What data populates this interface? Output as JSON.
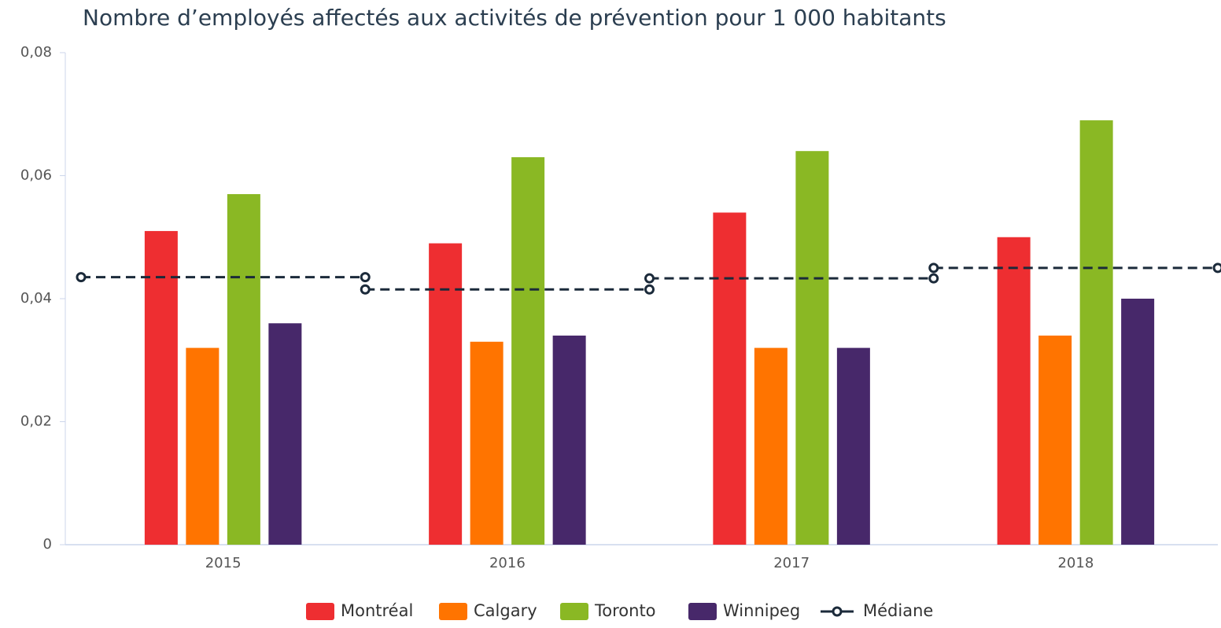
{
  "chart_data": {
    "type": "bar",
    "title": "Nombre d’employés affectés aux activités de prévention pour 1 000 habitants",
    "categories": [
      "2015",
      "2016",
      "2017",
      "2018"
    ],
    "series": [
      {
        "name": "Montréal",
        "color": "#ee2e31",
        "values": [
          0.051,
          0.049,
          0.054,
          0.05
        ]
      },
      {
        "name": "Calgary",
        "color": "#ff7400",
        "values": [
          0.032,
          0.033,
          0.032,
          0.034
        ]
      },
      {
        "name": "Toronto",
        "color": "#8ab824",
        "values": [
          0.057,
          0.063,
          0.064,
          0.069
        ]
      },
      {
        "name": "Winnipeg",
        "color": "#47286a",
        "values": [
          0.036,
          0.034,
          0.032,
          0.04
        ]
      },
      {
        "name": "Médiane",
        "color": "#1b2a3a",
        "type": "step",
        "values": [
          0.0435,
          0.0415,
          0.0433,
          0.045
        ]
      }
    ],
    "ylim": [
      0,
      0.08
    ],
    "yticks": [
      0,
      {
        "value": 0.02,
        "label": "0,02"
      },
      {
        "value": 0.04,
        "label": "0,04"
      },
      {
        "value": 0.06,
        "label": "0,06"
      },
      {
        "value": 0.08,
        "label": "0,08"
      }
    ],
    "grid": false
  }
}
